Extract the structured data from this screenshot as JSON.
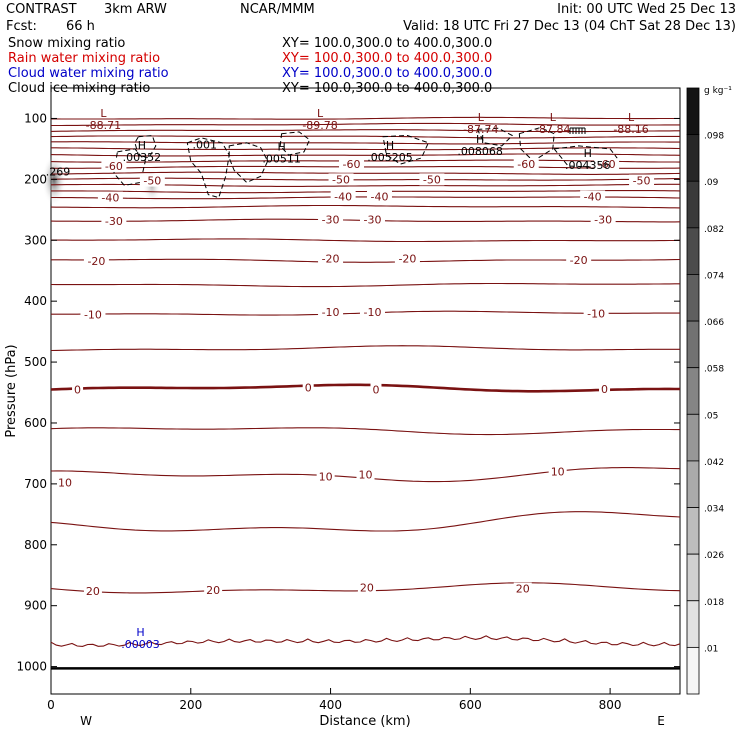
{
  "header": {
    "project": "CONTRAST",
    "model": "3km ARW",
    "center": "NCAR/MMM",
    "init": "Init: 00 UTC Wed 25 Dec 13",
    "fcst_label": "Fcst:",
    "fcst_value": "66 h",
    "valid": "Valid: 18 UTC Fri 27 Dec 13 (04 ChT Sat 28 Dec 13)"
  },
  "fields": [
    {
      "label": "Snow mixing ratio",
      "xy": "XY=  100.0,300.0 to 400.0,300.0",
      "color": "#000000"
    },
    {
      "label": "Rain water mixing ratio",
      "xy": "XY=  100.0,300.0 to 400.0,300.0",
      "color": "#d40000"
    },
    {
      "label": "Cloud water mixing ratio",
      "xy": "XY=  100.0,300.0 to 400.0,300.0",
      "color": "#0000c8"
    },
    {
      "label": "Cloud ice mixing ratio",
      "xy": "XY=  100.0,300.0 to 400.0,300.0",
      "color": "#000000"
    }
  ],
  "chart_data": {
    "type": "cross-section",
    "x_axis": {
      "label": "Distance (km)",
      "min": 0,
      "max": 900,
      "ticks": [
        0,
        200,
        400,
        600,
        800
      ],
      "left_end": "W",
      "right_end": "E"
    },
    "y_axis": {
      "label": "Pressure (hPa)",
      "min": 50,
      "max": 1045,
      "ticks": [
        100,
        200,
        300,
        400,
        500,
        600,
        700,
        800,
        900,
        1000
      ]
    },
    "temperature_contours": {
      "color": "#7a1212",
      "interval": 5,
      "labels": [
        {
          "value": "-60",
          "x": 90,
          "p": 178
        },
        {
          "value": "-50",
          "x": 145,
          "p": 202
        },
        {
          "value": "-50",
          "x": 415,
          "p": 200
        },
        {
          "value": "-50",
          "x": 545,
          "p": 200
        },
        {
          "value": "-50",
          "x": 845,
          "p": 202
        },
        {
          "value": "-60",
          "x": 430,
          "p": 175
        },
        {
          "value": "-60",
          "x": 680,
          "p": 175
        },
        {
          "value": "-60",
          "x": 795,
          "p": 175
        },
        {
          "value": "-40",
          "x": 85,
          "p": 230
        },
        {
          "value": "-40",
          "x": 418,
          "p": 228
        },
        {
          "value": "-40",
          "x": 470,
          "p": 228
        },
        {
          "value": "-40",
          "x": 775,
          "p": 228
        },
        {
          "value": "-30",
          "x": 90,
          "p": 268
        },
        {
          "value": "-30",
          "x": 400,
          "p": 266
        },
        {
          "value": "-30",
          "x": 460,
          "p": 266
        },
        {
          "value": "-30",
          "x": 790,
          "p": 266
        },
        {
          "value": "-20",
          "x": 65,
          "p": 334
        },
        {
          "value": "-20",
          "x": 400,
          "p": 330
        },
        {
          "value": "-20",
          "x": 510,
          "p": 330
        },
        {
          "value": "-20",
          "x": 755,
          "p": 332
        },
        {
          "value": "-10",
          "x": 60,
          "p": 422
        },
        {
          "value": "-10",
          "x": 400,
          "p": 418
        },
        {
          "value": "-10",
          "x": 460,
          "p": 418
        },
        {
          "value": "-10",
          "x": 780,
          "p": 420
        },
        {
          "value": "0",
          "x": 38,
          "p": 545
        },
        {
          "value": "0",
          "x": 368,
          "p": 542
        },
        {
          "value": "0",
          "x": 465,
          "p": 545
        },
        {
          "value": "0",
          "x": 792,
          "p": 544
        },
        {
          "value": "10",
          "x": 20,
          "p": 698
        },
        {
          "value": "10",
          "x": 393,
          "p": 688
        },
        {
          "value": "10",
          "x": 450,
          "p": 685
        },
        {
          "value": "10",
          "x": 725,
          "p": 680
        },
        {
          "value": "20",
          "x": 60,
          "p": 876
        },
        {
          "value": "20",
          "x": 232,
          "p": 874
        },
        {
          "value": "20",
          "x": 452,
          "p": 870
        },
        {
          "value": "20",
          "x": 675,
          "p": 872
        }
      ]
    },
    "extrema": [
      {
        "type": "L",
        "value": "-88.71",
        "x": 75,
        "p": 98,
        "color": "#7a1212"
      },
      {
        "type": "L",
        "value": "-89.78",
        "x": 385,
        "p": 98,
        "color": "#7a1212"
      },
      {
        "type": "L",
        "value": "-87.74",
        "x": 615,
        "p": 104,
        "color": "#7a1212"
      },
      {
        "type": "L",
        "value": "-87.84",
        "x": 718,
        "p": 104,
        "color": "#7a1212"
      },
      {
        "type": "L",
        "value": "-88.16",
        "x": 830,
        "p": 104,
        "color": "#7a1212"
      },
      {
        "type": "H",
        "value": ".00352",
        "x": 130,
        "p": 150,
        "color": "#000000"
      },
      {
        "type": "",
        "value": ".001",
        "x": 220,
        "p": 143,
        "color": "#000000"
      },
      {
        "type": "H",
        "value": ".00511",
        "x": 330,
        "p": 153,
        "color": "#000000"
      },
      {
        "type": "H",
        "value": ".005205",
        "x": 485,
        "p": 150,
        "color": "#000000"
      },
      {
        "type": "H",
        "value": ".008068",
        "x": 614,
        "p": 140,
        "color": "#000000"
      },
      {
        "type": "H",
        "value": ".004356",
        "x": 768,
        "p": 163,
        "color": "#000000"
      },
      {
        "type": "",
        "value": ".269",
        "x": 10,
        "p": 187,
        "color": "#000000"
      },
      {
        "type": "H",
        "value": ".00003",
        "x": 128,
        "p": 950,
        "color": "#0000c8"
      }
    ],
    "colorbar": {
      "unit": "g kg⁻¹",
      "labels": [
        ".01",
        ".018",
        ".026",
        ".034",
        ".042",
        ".05",
        ".058",
        ".066",
        ".074",
        ".082",
        ".09",
        ".098"
      ]
    }
  }
}
